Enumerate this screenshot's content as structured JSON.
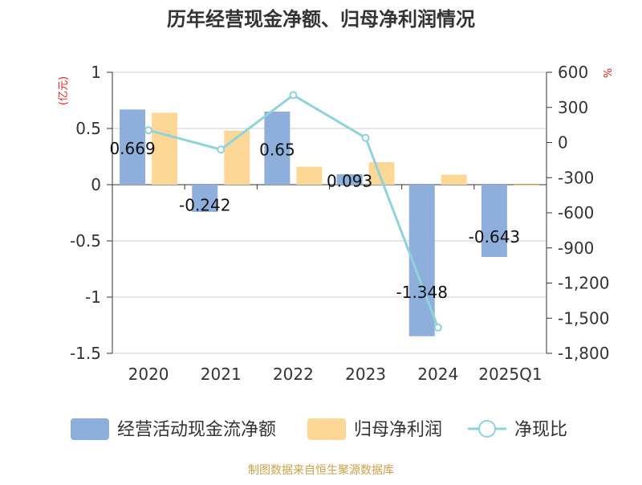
{
  "chart_data": {
    "type": "bar+line",
    "title": "历年经营现金净额、归母净利润情况",
    "categories": [
      "2020",
      "2021",
      "2022",
      "2023",
      "2024",
      "2025Q1"
    ],
    "left_axis": {
      "unit": "(亿元)",
      "ylim": [
        -1.5,
        1
      ],
      "ticks": [
        "1",
        "0.5",
        "0",
        "-0.5",
        "-1",
        "-1.5"
      ],
      "tick_values": [
        1,
        0.5,
        0,
        -0.5,
        -1,
        -1.5
      ]
    },
    "right_axis": {
      "unit": "%",
      "ylim": [
        -1800,
        600
      ],
      "ticks": [
        "600",
        "300",
        "0",
        "-300",
        "-600",
        "-900",
        "-1,200",
        "-1,500",
        "-1,800"
      ],
      "tick_values": [
        600,
        300,
        0,
        -300,
        -600,
        -900,
        -1200,
        -1500,
        -1800
      ]
    },
    "series": [
      {
        "name": "经营活动现金流净额",
        "type": "bar",
        "axis": "left",
        "color": "#8eaedc",
        "values": [
          0.669,
          -0.242,
          0.65,
          0.093,
          -1.348,
          -0.643
        ],
        "labels": [
          "0.669",
          "-0.242",
          "0.65",
          "0.093",
          "-1.348",
          "-0.643"
        ]
      },
      {
        "name": "归母净利润",
        "type": "bar",
        "axis": "left",
        "color": "#fdd795",
        "values": [
          0.64,
          0.48,
          0.16,
          0.2,
          0.09,
          -0.01
        ]
      },
      {
        "name": "净现比",
        "type": "line",
        "axis": "right",
        "color": "#8fd3d9",
        "values": [
          105,
          -60,
          405,
          40,
          -1580,
          null
        ]
      }
    ],
    "source": "制图数据来自恒生聚源数据库"
  }
}
